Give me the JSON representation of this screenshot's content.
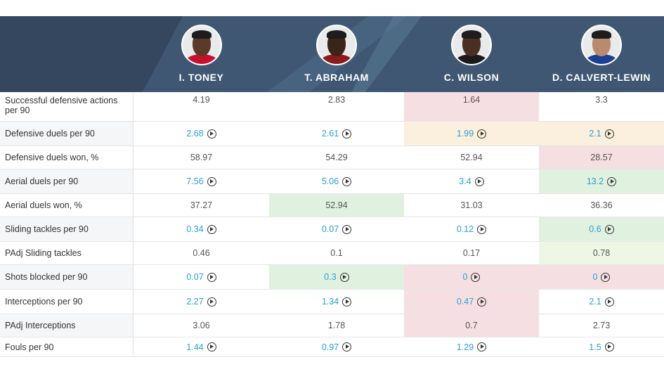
{
  "players": [
    {
      "name": "I. TONEY",
      "skin": "#5b3a2a",
      "shirt": "#c8102e"
    },
    {
      "name": "T. ABRAHAM",
      "skin": "#3b2418",
      "shirt": "#8b1a1a"
    },
    {
      "name": "C. WILSON",
      "skin": "#4a2f22",
      "shirt": "#1a1a1a"
    },
    {
      "name": "D. CALVERT-LEWIN",
      "skin": "#b98b6e",
      "shirt": "#1c3f94"
    }
  ],
  "rows": [
    {
      "label": "Successful defensive actions per 90",
      "values": [
        "4.19",
        "2.83",
        "1.64",
        "3.3"
      ],
      "link": false,
      "bg": [
        "",
        "",
        "red",
        ""
      ]
    },
    {
      "label": "Defensive duels per 90",
      "values": [
        "2.68",
        "2.61",
        "1.99",
        "2.1"
      ],
      "link": true,
      "bg": [
        "",
        "",
        "yellow",
        "yellow"
      ]
    },
    {
      "label": "Defensive duels won, %",
      "values": [
        "58.97",
        "54.29",
        "52.94",
        "28.57"
      ],
      "link": false,
      "bg": [
        "",
        "",
        "",
        "red"
      ]
    },
    {
      "label": "Aerial duels per 90",
      "values": [
        "7.56",
        "5.06",
        "3.4",
        "13.2"
      ],
      "link": true,
      "bg": [
        "",
        "",
        "",
        "green"
      ]
    },
    {
      "label": "Aerial duels won, %",
      "values": [
        "37.27",
        "52.94",
        "31.03",
        "36.36"
      ],
      "link": false,
      "bg": [
        "",
        "green",
        "",
        ""
      ]
    },
    {
      "label": "Sliding tackles per 90",
      "values": [
        "0.34",
        "0.07",
        "0.12",
        "0.6"
      ],
      "link": true,
      "bg": [
        "",
        "",
        "",
        "green"
      ]
    },
    {
      "label": "PAdj Sliding tackles",
      "values": [
        "0.46",
        "0.1",
        "0.17",
        "0.78"
      ],
      "link": false,
      "bg": [
        "",
        "",
        "",
        "lightgreen"
      ]
    },
    {
      "label": "Shots blocked per 90",
      "values": [
        "0.07",
        "0.3",
        "0",
        "0"
      ],
      "link": true,
      "bg": [
        "",
        "green",
        "red",
        "red"
      ]
    },
    {
      "label": "Interceptions per 90",
      "values": [
        "2.27",
        "1.34",
        "0.47",
        "2.1"
      ],
      "link": true,
      "bg": [
        "",
        "",
        "red",
        ""
      ]
    },
    {
      "label": "PAdj Interceptions",
      "values": [
        "3.06",
        "1.78",
        "0.7",
        "2.73"
      ],
      "link": false,
      "bg": [
        "",
        "",
        "red",
        ""
      ]
    },
    {
      "label": "Fouls per 90",
      "values": [
        "1.44",
        "0.97",
        "1.29",
        "1.5"
      ],
      "link": true,
      "bg": [
        "",
        "",
        "",
        ""
      ]
    }
  ]
}
